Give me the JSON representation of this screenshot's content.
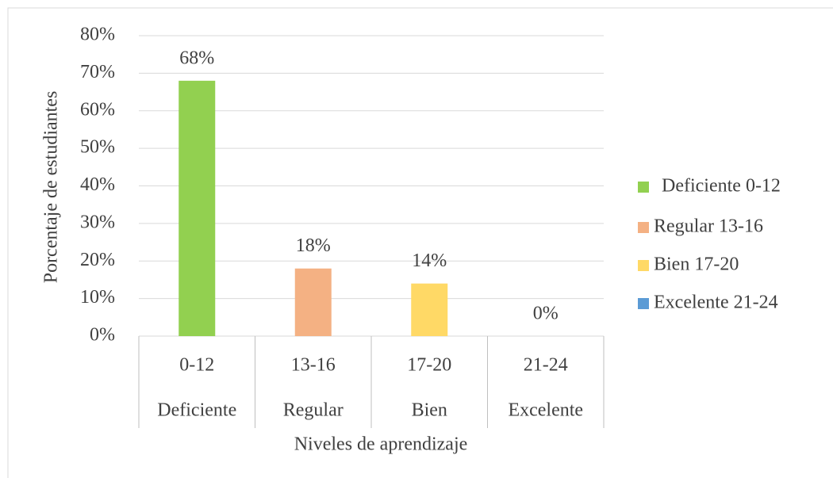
{
  "chart_data": {
    "type": "bar",
    "categories": [
      "0-12",
      "13-16",
      "17-20",
      "21-24"
    ],
    "category_groups": [
      "Deficiente",
      "Regular",
      "Bien",
      "Excelente"
    ],
    "values": [
      68,
      18,
      14,
      0
    ],
    "value_labels": [
      "68%",
      "18%",
      "14%",
      "0%"
    ],
    "colors": [
      "#92d050",
      "#f4b183",
      "#ffd966",
      "#5b9bd5"
    ],
    "legend": [
      "Deficiente 0-12",
      "Regular 13-16",
      "Bien 17-20",
      "Excelente 21-24"
    ],
    "legend_position": "right",
    "x_label": "Niveles de aprendizaje",
    "y_label": "Porcentaje de estudiantes",
    "ylim": [
      0,
      80
    ],
    "yticks": [
      {
        "value": 0,
        "label": "0%"
      },
      {
        "value": 10,
        "label": "10%"
      },
      {
        "value": 20,
        "label": "20%"
      },
      {
        "value": 30,
        "label": "30%"
      },
      {
        "value": 40,
        "label": "40%"
      },
      {
        "value": 50,
        "label": "50%"
      },
      {
        "value": 60,
        "label": "60%"
      },
      {
        "value": 70,
        "label": "70%"
      },
      {
        "value": 80,
        "label": "80%"
      }
    ],
    "grid": true
  }
}
